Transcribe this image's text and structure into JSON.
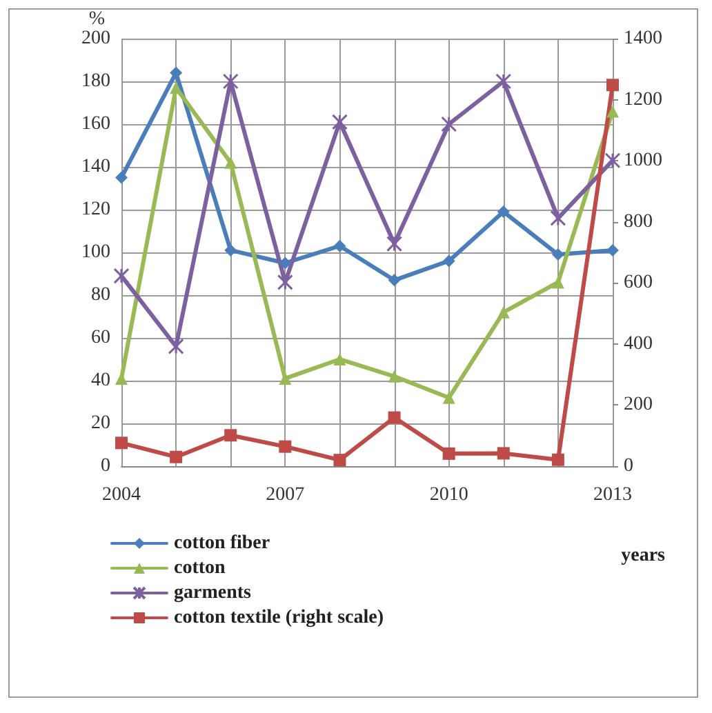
{
  "chart_data": {
    "type": "line",
    "ylabel": "%",
    "xlabel": "years",
    "y2label": null,
    "x": [
      2004,
      2005,
      2006,
      2007,
      2008,
      2009,
      2010,
      2011,
      2012,
      2013
    ],
    "xlim": [
      2004,
      2013
    ],
    "xticks": [
      2004,
      {
        "value": 2005,
        "label": null
      },
      {
        "value": 2006,
        "label": null
      },
      2007,
      {
        "value": 2008,
        "label": null
      },
      {
        "value": 2009,
        "label": null
      },
      2010,
      {
        "value": 2011,
        "label": null
      },
      {
        "value": 2012,
        "label": null
      },
      2013
    ],
    "ylim": [
      0,
      200
    ],
    "yticks": [
      0,
      20,
      40,
      60,
      80,
      100,
      120,
      140,
      160,
      180,
      200
    ],
    "y2lim": [
      0,
      1400
    ],
    "y2ticks": [
      0,
      200,
      400,
      600,
      800,
      1000,
      1200,
      1400
    ],
    "grid": true,
    "legend": "bottom left",
    "series": [
      {
        "name": "cotton fiber",
        "color": "#4a7ebb",
        "marker": "diamond",
        "values": [
          135,
          184,
          101,
          95,
          103,
          87,
          96,
          119,
          99,
          101
        ]
      },
      {
        "name": "cotton",
        "color": "#98b954",
        "marker": "triangle",
        "values": [
          41,
          177,
          142,
          41,
          50,
          42,
          32,
          72,
          86,
          166
        ]
      },
      {
        "name": "garments",
        "color": "#7d60a0",
        "marker": "cross",
        "values": [
          89,
          56,
          180,
          86,
          161,
          104,
          160,
          180,
          116,
          143
        ]
      },
      {
        "name": "cotton textile (right scale)",
        "color": "#be4b48",
        "marker": "square",
        "axis": "y2",
        "values": [
          76,
          30,
          101,
          64,
          20,
          159,
          41,
          42,
          21,
          1248
        ]
      }
    ]
  }
}
